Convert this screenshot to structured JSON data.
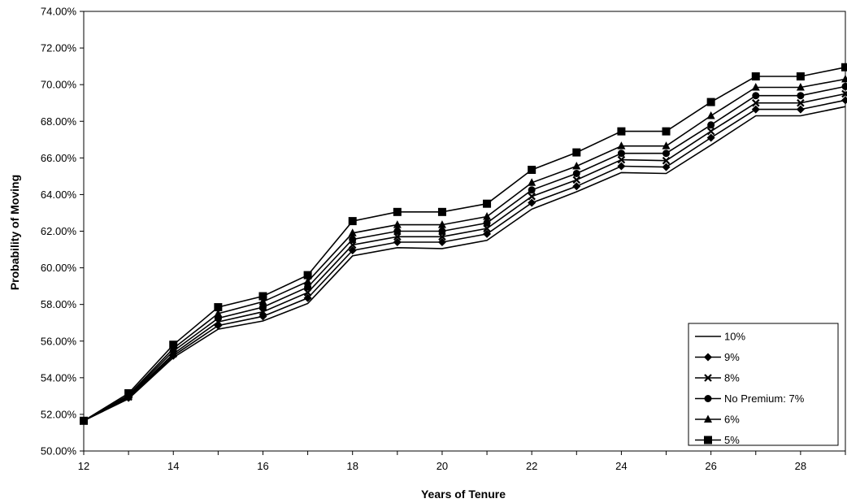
{
  "chart_data": {
    "type": "line",
    "title": "",
    "xlabel": "Years of Tenure",
    "ylabel": "Probability of Moving",
    "xlim": [
      12,
      29
    ],
    "ylim": [
      50,
      74
    ],
    "x_ticks": [
      "12",
      "14",
      "16",
      "18",
      "20",
      "22",
      "24",
      "26",
      "28"
    ],
    "y_ticks": [
      "50.00%",
      "52.00%",
      "54.00%",
      "56.00%",
      "58.00%",
      "60.00%",
      "62.00%",
      "64.00%",
      "66.00%",
      "68.00%",
      "70.00%",
      "72.00%",
      "74.00%"
    ],
    "grid": false,
    "legend_position": "bottom-right",
    "x": [
      12,
      13,
      14,
      15,
      16,
      17,
      18,
      19,
      20,
      21,
      22,
      23,
      24,
      25,
      26,
      27,
      28,
      29
    ],
    "series": [
      {
        "name": "10%",
        "marker": "none",
        "values": [
          51.65,
          52.85,
          55.1,
          56.65,
          57.1,
          58.05,
          60.65,
          61.1,
          61.05,
          61.5,
          63.2,
          64.15,
          65.2,
          65.15,
          66.7,
          68.3,
          68.3,
          68.8
        ]
      },
      {
        "name": "9%",
        "marker": "diamond",
        "values": [
          51.65,
          52.9,
          55.2,
          56.85,
          57.35,
          58.35,
          60.95,
          61.4,
          61.4,
          61.85,
          63.55,
          64.45,
          65.55,
          65.5,
          67.1,
          68.65,
          68.65,
          69.15
        ]
      },
      {
        "name": "8%",
        "marker": "x",
        "values": [
          51.65,
          52.95,
          55.3,
          57.05,
          57.6,
          58.65,
          61.25,
          61.7,
          61.7,
          62.15,
          63.9,
          64.8,
          65.9,
          65.85,
          67.45,
          69.0,
          69.0,
          69.5
        ]
      },
      {
        "name": "No Premium: 7%",
        "marker": "circle",
        "values": [
          51.65,
          53.0,
          55.45,
          57.25,
          57.85,
          58.95,
          61.55,
          62.0,
          62.0,
          62.45,
          64.25,
          65.15,
          66.25,
          66.25,
          67.8,
          69.4,
          69.4,
          69.9
        ]
      },
      {
        "name": "6%",
        "marker": "triangle",
        "values": [
          51.65,
          53.05,
          55.6,
          57.5,
          58.15,
          59.25,
          61.9,
          62.35,
          62.35,
          62.8,
          64.65,
          65.55,
          66.65,
          66.65,
          68.3,
          69.85,
          69.85,
          70.3
        ]
      },
      {
        "name": "5%",
        "marker": "square",
        "values": [
          51.65,
          53.15,
          55.8,
          57.85,
          58.45,
          59.6,
          62.55,
          63.05,
          63.05,
          63.5,
          65.35,
          66.3,
          67.45,
          67.45,
          69.05,
          70.45,
          70.45,
          70.95
        ]
      }
    ]
  }
}
